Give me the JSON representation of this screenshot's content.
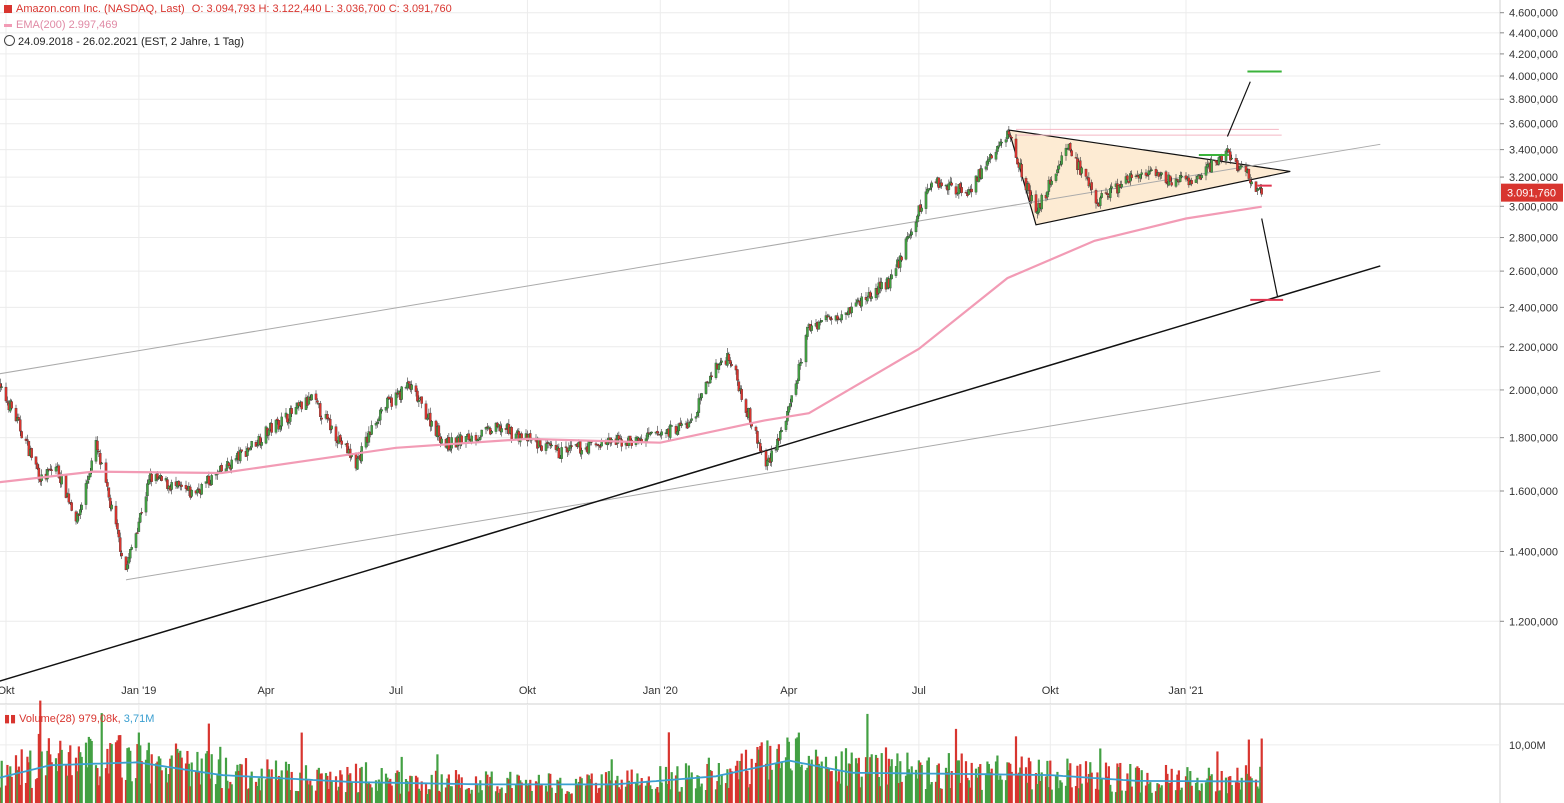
{
  "header": {
    "title": "Amazon.com Inc. (NASDAQ, Last)",
    "ohlc": "O: 3.094,793  H: 3.122,440  L: 3.036,700  C: 3.091,760",
    "ema": "EMA(200)  2.997,469",
    "range": "24.09.2018 - 26.02.2021  (EST, 2 Jahre, 1 Tag)"
  },
  "volume_header": {
    "label": "Volume(28)",
    "value1": "979,08k",
    "value2": "3,71M"
  },
  "last_price_label": "3.091,760",
  "colors": {
    "up": "#43a043",
    "down": "#d8352f",
    "ema": "#f29bb5",
    "vol_avg": "#3a9fd0",
    "triangle_fill": "#fdebd3",
    "target_up": "#3bb33b",
    "target_down": "#e0344f",
    "last_price_bg": "#d8352f"
  },
  "chart_data": {
    "type": "candlestick",
    "title": "Amazon.com Inc. (NASDAQ, Last)",
    "price_scale": "log",
    "ylim": [
      1050,
      4700
    ],
    "y_ticks": [
      "4.600,000",
      "4.400,000",
      "4.200,000",
      "4.000,000",
      "3.800,000",
      "3.600,000",
      "3.400,000",
      "3.200,000",
      "3.000,000",
      "2.800,000",
      "2.600,000",
      "2.400,000",
      "2.200,000",
      "2.000,000",
      "1.800,000",
      "1.600,000",
      "1.400,000",
      "1.200,000"
    ],
    "y_tick_values": [
      4600,
      4400,
      4200,
      4000,
      3800,
      3600,
      3400,
      3200,
      3000,
      2800,
      2600,
      2400,
      2200,
      2000,
      1800,
      1600,
      1400,
      1200
    ],
    "x_labels": [
      {
        "label": "Okt",
        "date": "2018-10-01"
      },
      {
        "label": "Jan '19",
        "date": "2019-01-02"
      },
      {
        "label": "Apr",
        "date": "2019-04-01"
      },
      {
        "label": "Jul",
        "date": "2019-07-01"
      },
      {
        "label": "Okt",
        "date": "2019-10-01"
      },
      {
        "label": "Jan '20",
        "date": "2020-01-02"
      },
      {
        "label": "Apr",
        "date": "2020-04-01"
      },
      {
        "label": "Jul",
        "date": "2020-07-01"
      },
      {
        "label": "Okt",
        "date": "2020-10-01"
      },
      {
        "label": "Jan '21",
        "date": "2021-01-04"
      }
    ],
    "price_anchors": [
      {
        "date": "2018-09-24",
        "close": 2030
      },
      {
        "date": "2018-10-05",
        "close": 1920
      },
      {
        "date": "2018-10-26",
        "close": 1640
      },
      {
        "date": "2018-11-05",
        "close": 1690
      },
      {
        "date": "2018-11-20",
        "close": 1500
      },
      {
        "date": "2018-12-03",
        "close": 1770
      },
      {
        "date": "2018-12-24",
        "close": 1345
      },
      {
        "date": "2019-01-10",
        "close": 1650
      },
      {
        "date": "2019-02-08",
        "close": 1590
      },
      {
        "date": "2019-03-01",
        "close": 1670
      },
      {
        "date": "2019-04-05",
        "close": 1840
      },
      {
        "date": "2019-05-03",
        "close": 1960
      },
      {
        "date": "2019-06-03",
        "close": 1700
      },
      {
        "date": "2019-06-20",
        "close": 1910
      },
      {
        "date": "2019-07-10",
        "close": 2020
      },
      {
        "date": "2019-08-05",
        "close": 1770
      },
      {
        "date": "2019-09-13",
        "close": 1840
      },
      {
        "date": "2019-10-22",
        "close": 1740
      },
      {
        "date": "2019-11-25",
        "close": 1780
      },
      {
        "date": "2019-12-20",
        "close": 1790
      },
      {
        "date": "2020-01-24",
        "close": 1860
      },
      {
        "date": "2020-02-07",
        "close": 2080
      },
      {
        "date": "2020-02-19",
        "close": 2160
      },
      {
        "date": "2020-03-16",
        "close": 1690
      },
      {
        "date": "2020-04-01",
        "close": 1900
      },
      {
        "date": "2020-04-15",
        "close": 2300
      },
      {
        "date": "2020-05-15",
        "close": 2400
      },
      {
        "date": "2020-06-12",
        "close": 2550
      },
      {
        "date": "2020-07-10",
        "close": 3180
      },
      {
        "date": "2020-08-04",
        "close": 3100
      },
      {
        "date": "2020-09-02",
        "close": 3530
      },
      {
        "date": "2020-09-21",
        "close": 2950
      },
      {
        "date": "2020-10-13",
        "close": 3440
      },
      {
        "date": "2020-11-02",
        "close": 3030
      },
      {
        "date": "2020-12-01",
        "close": 3220
      },
      {
        "date": "2021-01-07",
        "close": 3160
      },
      {
        "date": "2021-02-02",
        "close": 3380
      },
      {
        "date": "2021-02-26",
        "close": 3092
      }
    ],
    "ema_anchors": [
      {
        "date": "2018-09-24",
        "value": 1630
      },
      {
        "date": "2018-12-01",
        "value": 1670
      },
      {
        "date": "2019-03-01",
        "value": 1665
      },
      {
        "date": "2019-07-01",
        "value": 1760
      },
      {
        "date": "2019-10-01",
        "value": 1795
      },
      {
        "date": "2020-01-02",
        "value": 1780
      },
      {
        "date": "2020-03-15",
        "value": 1870
      },
      {
        "date": "2020-04-15",
        "value": 1900
      },
      {
        "date": "2020-07-01",
        "value": 2190
      },
      {
        "date": "2020-09-01",
        "value": 2560
      },
      {
        "date": "2020-11-01",
        "value": 2780
      },
      {
        "date": "2021-01-04",
        "value": 2920
      },
      {
        "date": "2021-02-26",
        "value": 2997
      }
    ],
    "trendlines": [
      {
        "name": "upper-channel",
        "p1": {
          "date": "2018-09-24",
          "value": 2070
        },
        "p2": {
          "date": "2021-05-20",
          "value": 3440
        },
        "color": "#aaaaaa"
      },
      {
        "name": "lower-channel",
        "p1": {
          "date": "2018-12-24",
          "value": 1315
        },
        "p2": {
          "date": "2021-05-20",
          "value": 2085
        },
        "color": "#aaaaaa"
      },
      {
        "name": "support",
        "p1": {
          "date": "2018-09-25",
          "value": 1050
        },
        "p2": {
          "date": "2021-05-20",
          "value": 2630
        },
        "color": "#111111"
      }
    ],
    "triangle": {
      "apex_top": {
        "date": "2020-09-02",
        "value": 3550
      },
      "bottom": {
        "date": "2020-09-21",
        "value": 2880
      },
      "apex_right": {
        "date": "2021-03-18",
        "value": 3240
      }
    },
    "resistance_lines": [
      {
        "from": "2020-09-07",
        "to": "2021-03-10",
        "value": 3555
      },
      {
        "from": "2020-09-07",
        "to": "2021-03-12",
        "value": 3510
      }
    ],
    "targets": [
      {
        "name": "target-up",
        "from": "2021-02-16",
        "to": "2021-03-12",
        "value": 4040,
        "arrow_from": {
          "date": "2021-02-02",
          "value": 3500
        },
        "arrow_to": {
          "date": "2021-02-18",
          "value": 3950
        }
      },
      {
        "name": "target-down",
        "from": "2021-02-18",
        "to": "2021-03-13",
        "value": 2440,
        "arrow_from": {
          "date": "2021-02-26",
          "value": 2920
        },
        "arrow_to": {
          "date": "2021-03-09",
          "value": 2460
        }
      },
      {
        "name": "marker-green",
        "from": "2021-01-13",
        "to": "2021-02-03",
        "value": 3360
      },
      {
        "name": "marker-red",
        "from": "2021-02-23",
        "to": "2021-03-05",
        "value": 3140
      }
    ],
    "volume": {
      "name": "Volume(28)",
      "y_ticks": [
        "10,00M"
      ],
      "y_tick_values": [
        10
      ],
      "ylim": [
        0,
        16
      ],
      "avg_anchors": [
        {
          "date": "2018-09-24",
          "value": 4.2
        },
        {
          "date": "2018-11-01",
          "value": 6.5
        },
        {
          "date": "2019-01-01",
          "value": 7.0
        },
        {
          "date": "2019-03-01",
          "value": 4.8
        },
        {
          "date": "2019-06-01",
          "value": 3.6
        },
        {
          "date": "2019-09-01",
          "value": 3.2
        },
        {
          "date": "2019-12-01",
          "value": 3.2
        },
        {
          "date": "2020-02-10",
          "value": 4.6
        },
        {
          "date": "2020-04-01",
          "value": 7.3
        },
        {
          "date": "2020-05-15",
          "value": 5.2
        },
        {
          "date": "2020-08-01",
          "value": 5.0
        },
        {
          "date": "2020-10-01",
          "value": 4.8
        },
        {
          "date": "2020-12-01",
          "value": 3.8
        },
        {
          "date": "2021-02-26",
          "value": 3.7
        }
      ]
    }
  }
}
